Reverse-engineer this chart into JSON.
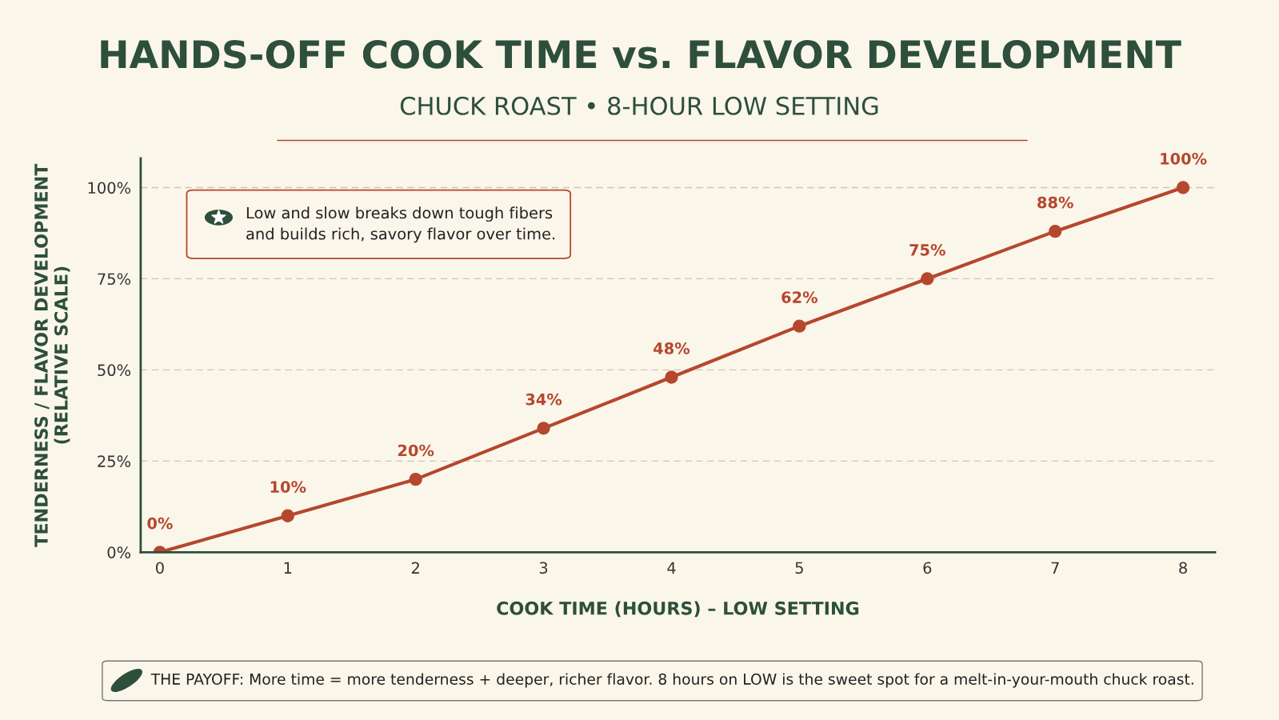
{
  "chart_data": {
    "type": "line",
    "title": "HANDS-OFF COOK TIME vs. FLAVOR DEVELOPMENT",
    "subtitle": "CHUCK ROAST • 8-HOUR LOW SETTING",
    "xlabel": "COOK TIME (HOURS) – LOW SETTING",
    "ylabel": "TENDERNESS / FLAVOR DEVELOPMENT\n(RELATIVE SCALE)",
    "x": [
      0,
      1,
      2,
      3,
      4,
      5,
      6,
      7,
      8
    ],
    "series": [
      {
        "color": "#b5472e",
        "values": [
          0,
          10,
          20,
          34,
          48,
          62,
          75,
          88,
          100
        ]
      }
    ],
    "xlim": [
      -0.15,
      8.25
    ],
    "xticks": [
      0,
      1,
      2,
      3,
      4,
      5,
      6,
      7,
      8
    ],
    "ylim": [
      0,
      108
    ],
    "yticks": [
      {
        "value": 0,
        "label": "0%"
      },
      {
        "value": 25,
        "label": "25%"
      },
      {
        "value": 50,
        "label": "50%"
      },
      {
        "value": 75,
        "label": "75%"
      },
      {
        "value": 100,
        "label": "100%"
      }
    ],
    "value_labels": [
      "0%",
      "10%",
      "20%",
      "34%",
      "48%",
      "62%",
      "75%",
      "88%",
      "100%"
    ],
    "grid": "y",
    "marker": "circle",
    "line_style": "solid",
    "legend": false,
    "annotations": [
      "Low and slow breaks down tough fibers\nand builds rich, savory flavor over time.",
      "THE PAYOFF: More time = more tenderness + deeper, richer flavor. 8 hours on LOW is the sweet spot for a melt-in-your-mouth chuck roast."
    ]
  }
}
